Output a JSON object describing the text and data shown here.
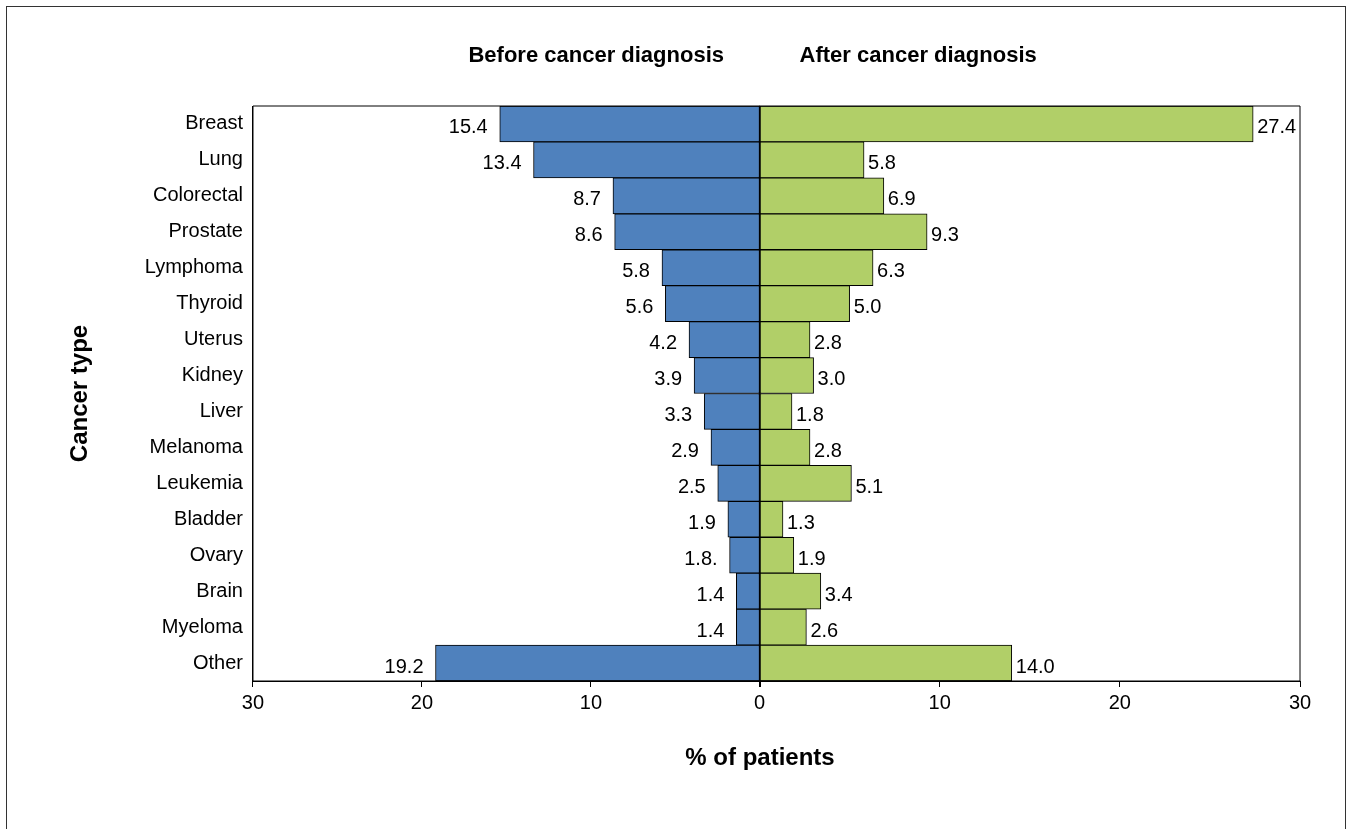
{
  "chart_data": [
    {
      "type": "bar",
      "orientation": "horizontal",
      "title": "Before cancer diagnosis",
      "ylabel": "Cancer type",
      "xlabel": "% of patients",
      "categories": [
        "Breast",
        "Lung",
        "Colorectal",
        "Prostate",
        "Lymphoma",
        "Thyroid",
        "Uterus",
        "Kidney",
        "Liver",
        "Melanoma",
        "Leukemia",
        "Bladder",
        "Ovary",
        "Brain",
        "Myeloma",
        "Other"
      ],
      "values": [
        15.4,
        13.4,
        8.7,
        8.6,
        5.8,
        5.6,
        4.2,
        3.9,
        3.3,
        2.9,
        2.5,
        1.9,
        1.8,
        1.4,
        1.4,
        19.2
      ],
      "color": "#4f81bd",
      "value_labels": [
        "15.4",
        "13.4",
        "8.7",
        "8.6",
        "5.8",
        "5.6",
        "4.2",
        "3.9",
        "3.3",
        "2.9",
        "2.5",
        "1.9",
        "1.8.",
        "1.4",
        "1.4",
        "19.2"
      ],
      "xlim": [
        30,
        0
      ],
      "xticks": [
        30,
        20,
        10,
        {
          "value": 0,
          "label": null
        }
      ],
      "grid": false,
      "legend": false
    },
    {
      "type": "bar",
      "orientation": "horizontal",
      "title": "After cancer diagnosis",
      "tick_labels": "x",
      "categories": [
        null,
        null,
        null,
        null,
        null,
        null,
        null,
        null,
        null,
        null,
        null,
        null,
        null,
        null,
        null,
        null
      ],
      "values": [
        27.4,
        5.8,
        6.9,
        9.3,
        6.3,
        5.0,
        2.8,
        3.0,
        1.8,
        2.8,
        5.1,
        1.3,
        1.9,
        3.4,
        2.6,
        14.0
      ],
      "color": "#b1cf68",
      "value_labels": [
        "27.4",
        "5.8",
        "6.9",
        "9.3",
        "6.3",
        "5.0",
        "2.8",
        "3.0",
        "1.8",
        "2.8",
        "5.1",
        "1.3",
        "1.9",
        "3.4",
        "2.6",
        "14.0"
      ],
      "xlim": [
        0,
        30
      ],
      "xticks": [
        0,
        10,
        20,
        30
      ],
      "grid": false,
      "legend": false
    }
  ]
}
